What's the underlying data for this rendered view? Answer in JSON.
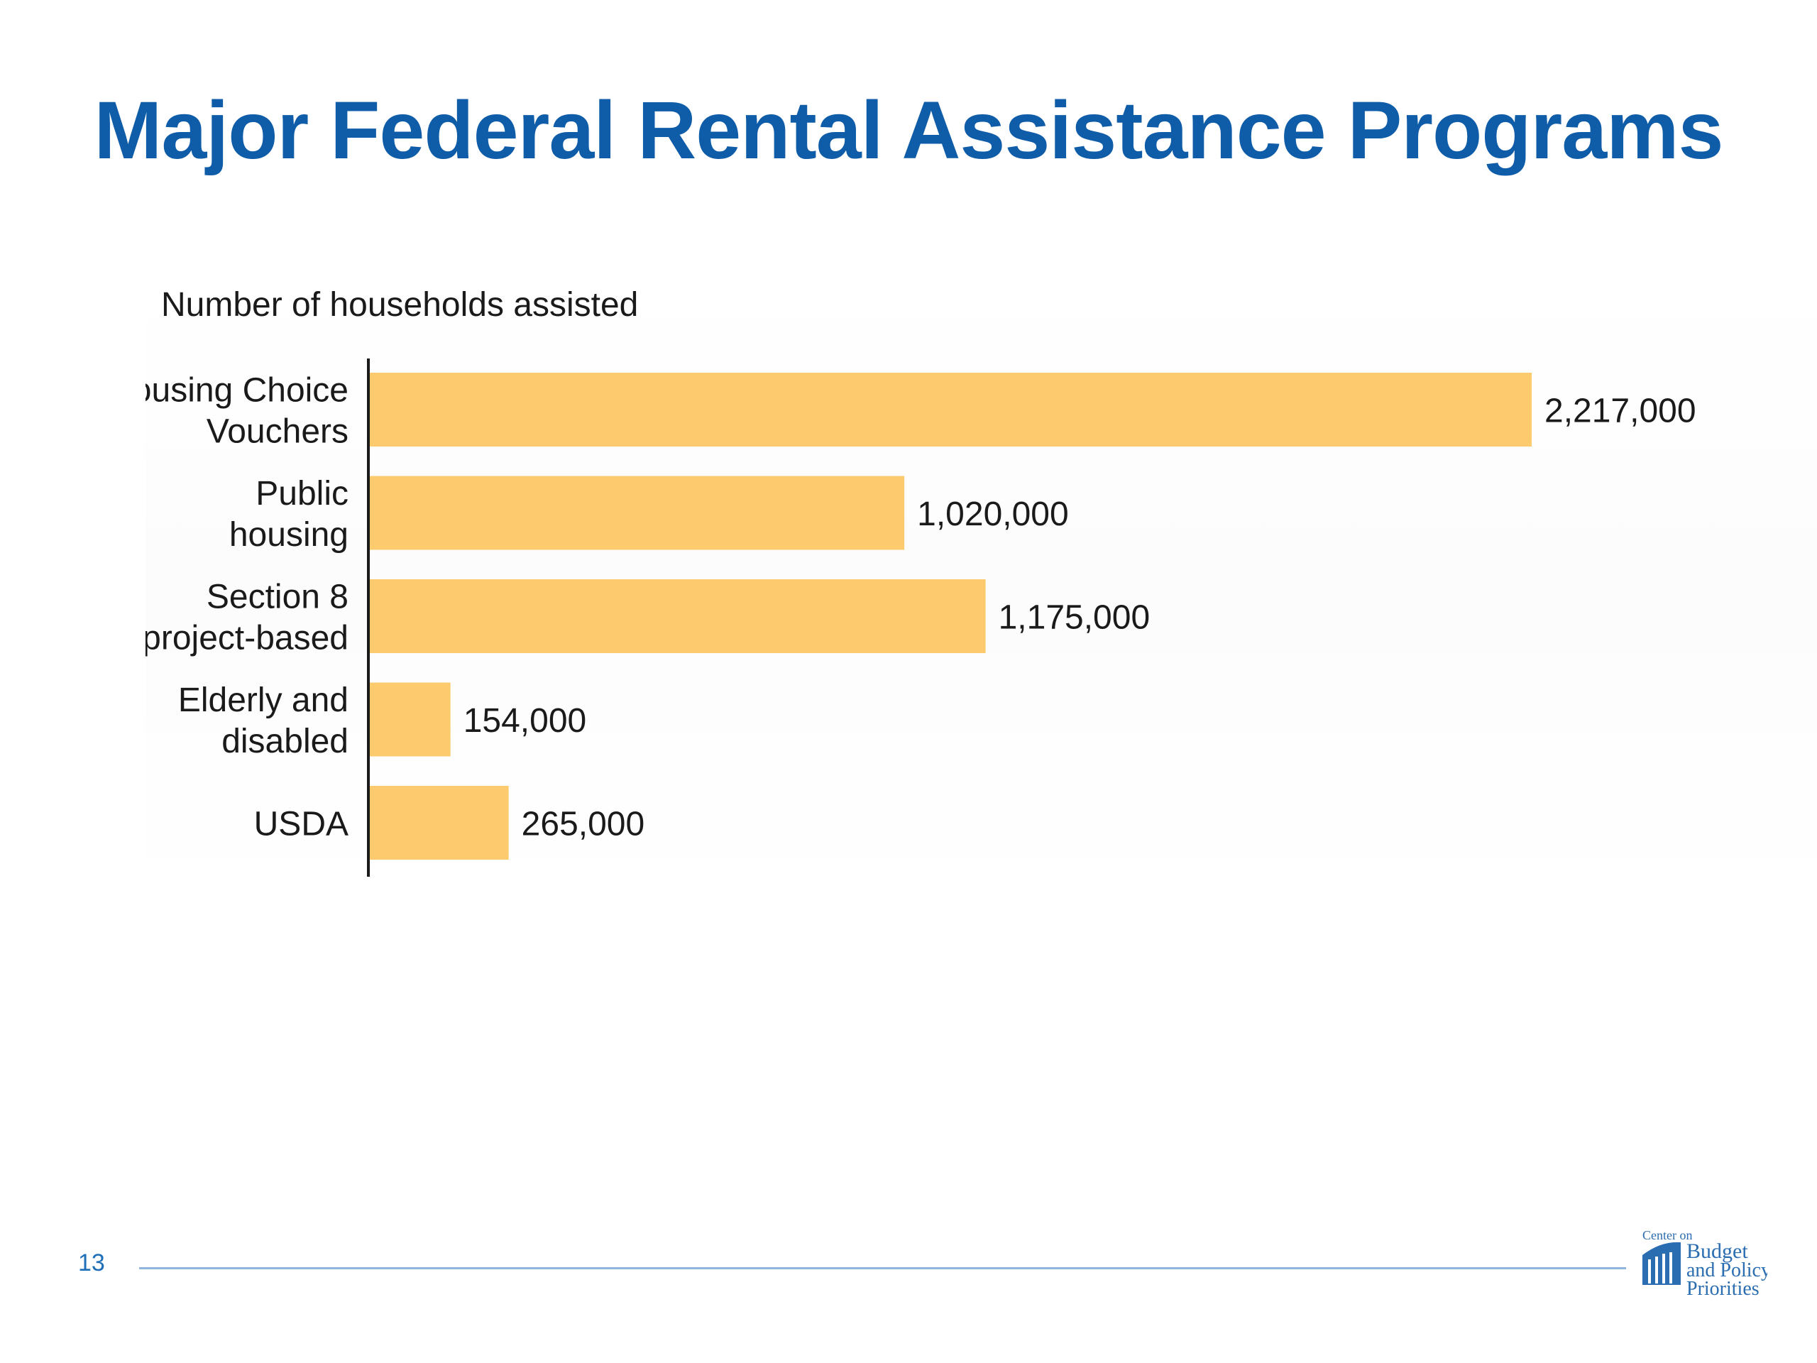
{
  "slide": {
    "title": "Major Federal Rental Assistance Programs",
    "page_number": "13"
  },
  "logo": {
    "line1": "Center on",
    "line2": "Budget",
    "line3": "and Policy",
    "line4": "Priorities"
  },
  "colors": {
    "title": "#0f5ca8",
    "bar": "#fdcb6e",
    "axis": "#1a1a1a",
    "text": "#1a1a1a",
    "footer_line": "#8fb6dc",
    "page_number": "#1f6fb8"
  },
  "chart_data": {
    "type": "bar",
    "orientation": "horizontal",
    "title": "Number of households assisted",
    "categories": [
      [
        "Housing Choice",
        "Vouchers"
      ],
      [
        "Public",
        "housing"
      ],
      [
        "Section 8",
        "project-based"
      ],
      [
        "Elderly and",
        "disabled"
      ],
      [
        "USDA"
      ]
    ],
    "values": [
      2217000,
      1020000,
      1175000,
      154000,
      265000
    ],
    "value_labels": [
      "2,217,000",
      "1,020,000",
      "1,175,000",
      "154,000",
      "265,000"
    ],
    "xlim": [
      0,
      2217000
    ],
    "grid": false,
    "legend": "none"
  }
}
